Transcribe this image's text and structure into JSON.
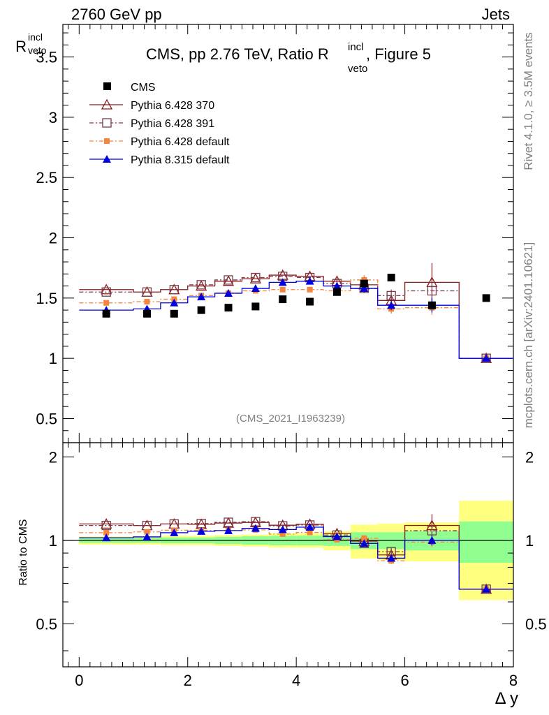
{
  "header": {
    "energy_label": "2760 GeV pp",
    "category_label": "Jets"
  },
  "side_text": {
    "rivet": "Rivet 4.1.0, ≥ 3.5M events",
    "mcplots": "mcplots.cern.ch [arXiv:2401.10621]"
  },
  "colors": {
    "cms": "#000000",
    "p370": "#8b1a1a",
    "p391": "#7a3b4a",
    "pdef": "#f5843c",
    "p8": "#0000dd",
    "band_yellow": "#ffff80",
    "band_green": "#90ff90"
  },
  "chart_data": {
    "type": "scatter",
    "title_main": "CMS, pp 2.76 TeV, Ratio R",
    "title_sup": "incl",
    "title_sub": "veto",
    "title_suffix": ", Figure 5",
    "ylabel_main": "R",
    "ylabel_sup": "incl",
    "ylabel_sub": "veto",
    "ratio_ylabel": "Ratio to CMS",
    "xlabel": "Δ y",
    "analysis_id": "(CMS_2021_I1963239)",
    "xlim": [
      -0.3,
      8.0
    ],
    "ylim": [
      0.3,
      3.77
    ],
    "ratio_ylim": [
      0.35,
      2.25
    ],
    "x_ticks": [
      0,
      2,
      4,
      6,
      8
    ],
    "x_tick_labels": [
      "0",
      "2",
      "4",
      "6",
      "8"
    ],
    "y_ticks": [
      0.5,
      1,
      1.5,
      2,
      2.5,
      3,
      3.5
    ],
    "y_tick_labels": [
      "0.5",
      "1",
      "1.5",
      "2",
      "2.5",
      "3",
      "3.5"
    ],
    "ratio_ticks": [
      0.5,
      1,
      2
    ],
    "ratio_tick_labels": [
      "0.5",
      "1",
      "2"
    ],
    "bins": [
      [
        0,
        1
      ],
      [
        1,
        1.5
      ],
      [
        1.5,
        2
      ],
      [
        2,
        2.5
      ],
      [
        2.5,
        3
      ],
      [
        3,
        3.5
      ],
      [
        3.5,
        4
      ],
      [
        4,
        4.5
      ],
      [
        4.5,
        5
      ],
      [
        5,
        5.5
      ],
      [
        5.5,
        6
      ],
      [
        6,
        7
      ],
      [
        7,
        8
      ]
    ],
    "x": [
      0.5,
      1.25,
      1.75,
      2.25,
      2.75,
      3.25,
      3.75,
      4.25,
      4.75,
      5.25,
      5.75,
      6.5,
      7.5
    ],
    "cms": [
      1.37,
      1.37,
      1.37,
      1.4,
      1.42,
      1.43,
      1.49,
      1.47,
      1.55,
      1.62,
      1.67,
      1.44,
      1.5
    ],
    "band_inner": [
      0.02,
      0.02,
      0.025,
      0.025,
      0.03,
      0.035,
      0.04,
      0.04,
      0.045,
      0.07,
      0.07,
      0.08,
      0.17
    ],
    "band_outer": [
      0.035,
      0.035,
      0.04,
      0.04,
      0.045,
      0.05,
      0.06,
      0.06,
      0.08,
      0.14,
      0.15,
      0.16,
      0.39
    ],
    "legend": [
      "CMS",
      "Pythia 6.428 370",
      "Pythia 6.428 391",
      "Pythia 6.428 default",
      "Pythia 8.315 default"
    ],
    "series": [
      {
        "name": "Pythia 6.428 370",
        "values": [
          1.57,
          1.55,
          1.57,
          1.6,
          1.64,
          1.66,
          1.69,
          1.68,
          1.64,
          1.61,
          1.48,
          1.63,
          1.0
        ],
        "errors": [
          0.01,
          0.01,
          0.01,
          0.01,
          0.01,
          0.01,
          0.01,
          0.015,
          0.02,
          0.04,
          0.05,
          0.16,
          0
        ]
      },
      {
        "name": "Pythia 6.428 391",
        "values": [
          1.55,
          1.55,
          1.57,
          1.61,
          1.65,
          1.67,
          1.68,
          1.67,
          1.62,
          1.58,
          1.52,
          1.56,
          1.0
        ],
        "errors": [
          0.01,
          0.01,
          0.01,
          0.01,
          0.01,
          0.01,
          0.01,
          0.015,
          0.02,
          0.04,
          0.05,
          0.09,
          0
        ]
      },
      {
        "name": "Pythia 6.428 default",
        "values": [
          1.46,
          1.47,
          1.49,
          1.52,
          1.54,
          1.56,
          1.57,
          1.57,
          1.56,
          1.65,
          1.41,
          1.42,
          1.0
        ],
        "errors": [
          0.01,
          0.01,
          0.01,
          0.01,
          0.01,
          0.01,
          0.01,
          0.015,
          0.02,
          0.04,
          0.04,
          0.06,
          0
        ]
      },
      {
        "name": "Pythia 8.315 default",
        "values": [
          1.4,
          1.41,
          1.46,
          1.51,
          1.54,
          1.58,
          1.63,
          1.64,
          1.6,
          1.58,
          1.44,
          1.44,
          1.0
        ],
        "errors": [
          0.01,
          0.01,
          0.01,
          0.01,
          0.01,
          0.01,
          0.01,
          0.015,
          0.02,
          0.03,
          0.04,
          0.06,
          0
        ]
      }
    ]
  }
}
